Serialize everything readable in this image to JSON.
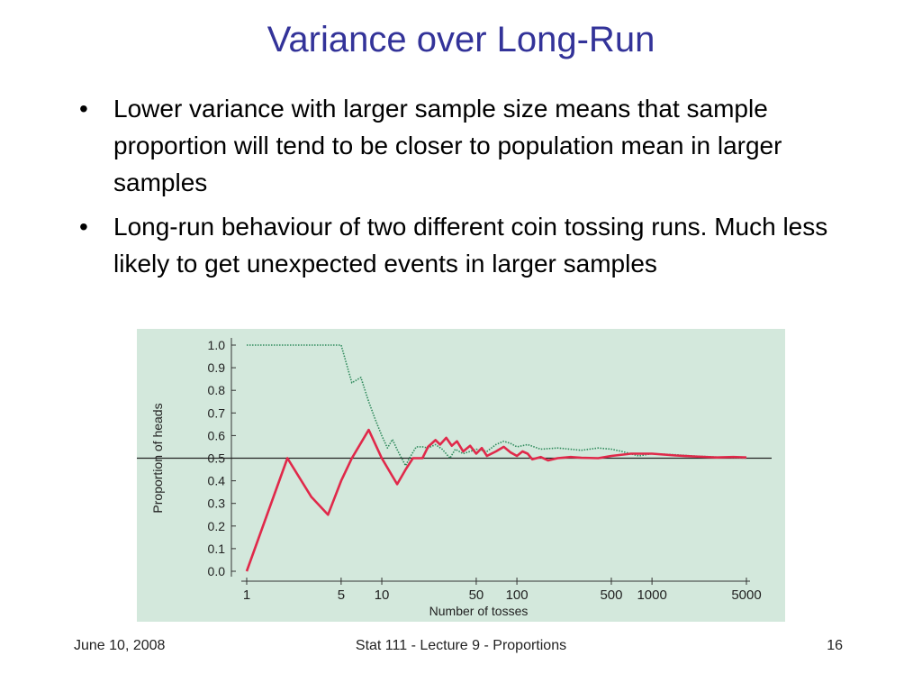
{
  "slide": {
    "title": "Variance over Long-Run",
    "bullets": [
      "Lower variance with larger sample size means that sample proportion will tend to be closer to population mean in larger samples",
      "Long-run behaviour of two different coin tossing runs. Much less likely to get unexpected events in larger samples"
    ],
    "bullet_glyph": "•"
  },
  "footer": {
    "date": "June 10, 2008",
    "course": "Stat 111 - Lecture 9 - Proportions",
    "page": "16"
  },
  "chart_data": {
    "type": "line",
    "title": "",
    "xlabel": "Number of tosses",
    "ylabel": "Proportion of heads",
    "x_scale": "log",
    "xlim": [
      1,
      5000
    ],
    "ylim": [
      0,
      1
    ],
    "x_ticks": [
      1,
      5,
      10,
      50,
      100,
      500,
      1000,
      5000
    ],
    "y_ticks": [
      "0.0",
      "0.1",
      "0.2",
      "0.3",
      "0.4",
      "0.5",
      "0.6",
      "0.7",
      "0.8",
      "0.9",
      "1.0"
    ],
    "reference_line": 0.5,
    "grid": false,
    "legend": "none",
    "colors": {
      "background": "#d3e8dc",
      "red_series": "#e0294a",
      "green_series": "#2f8a5c",
      "reference": "#222222"
    },
    "series": [
      {
        "color": "#e0294a",
        "style": "solid",
        "points": [
          [
            1,
            0.0
          ],
          [
            2,
            0.5
          ],
          [
            3,
            0.33
          ],
          [
            4,
            0.25
          ],
          [
            5,
            0.4
          ],
          [
            6,
            0.5
          ],
          [
            8,
            0.625
          ],
          [
            10,
            0.5
          ],
          [
            12,
            0.42
          ],
          [
            13,
            0.385
          ],
          [
            15,
            0.45
          ],
          [
            17,
            0.5
          ],
          [
            20,
            0.5
          ],
          [
            22,
            0.55
          ],
          [
            25,
            0.58
          ],
          [
            27,
            0.56
          ],
          [
            30,
            0.59
          ],
          [
            33,
            0.555
          ],
          [
            36,
            0.575
          ],
          [
            40,
            0.53
          ],
          [
            45,
            0.555
          ],
          [
            50,
            0.52
          ],
          [
            55,
            0.545
          ],
          [
            60,
            0.51
          ],
          [
            70,
            0.53
          ],
          [
            80,
            0.55
          ],
          [
            90,
            0.525
          ],
          [
            100,
            0.51
          ],
          [
            110,
            0.53
          ],
          [
            120,
            0.52
          ],
          [
            130,
            0.495
          ],
          [
            150,
            0.505
          ],
          [
            170,
            0.49
          ],
          [
            200,
            0.5
          ],
          [
            250,
            0.505
          ],
          [
            300,
            0.502
          ],
          [
            400,
            0.5
          ],
          [
            500,
            0.51
          ],
          [
            700,
            0.52
          ],
          [
            1000,
            0.52
          ],
          [
            1500,
            0.512
          ],
          [
            2000,
            0.508
          ],
          [
            3000,
            0.503
          ],
          [
            4000,
            0.505
          ],
          [
            5000,
            0.503
          ]
        ]
      },
      {
        "color": "#2f8a5c",
        "style": "dotted",
        "points": [
          [
            1,
            1.0
          ],
          [
            2,
            1.0
          ],
          [
            3,
            1.0
          ],
          [
            4,
            1.0
          ],
          [
            5,
            1.0
          ],
          [
            6,
            0.833
          ],
          [
            7,
            0.857
          ],
          [
            8,
            0.75
          ],
          [
            9,
            0.667
          ],
          [
            10,
            0.6
          ],
          [
            11,
            0.545
          ],
          [
            12,
            0.583
          ],
          [
            13,
            0.538
          ],
          [
            14,
            0.5
          ],
          [
            15,
            0.467
          ],
          [
            16,
            0.5
          ],
          [
            18,
            0.55
          ],
          [
            20,
            0.55
          ],
          [
            22,
            0.545
          ],
          [
            25,
            0.56
          ],
          [
            28,
            0.54
          ],
          [
            32,
            0.5
          ],
          [
            35,
            0.54
          ],
          [
            40,
            0.52
          ],
          [
            45,
            0.53
          ],
          [
            50,
            0.54
          ],
          [
            60,
            0.53
          ],
          [
            70,
            0.56
          ],
          [
            80,
            0.575
          ],
          [
            90,
            0.565
          ],
          [
            100,
            0.55
          ],
          [
            120,
            0.56
          ],
          [
            150,
            0.54
          ],
          [
            200,
            0.545
          ],
          [
            300,
            0.535
          ],
          [
            400,
            0.545
          ],
          [
            500,
            0.54
          ],
          [
            600,
            0.53
          ],
          [
            800,
            0.51
          ],
          [
            1000,
            0.52
          ],
          [
            1500,
            0.515
          ],
          [
            2000,
            0.51
          ],
          [
            3000,
            0.505
          ],
          [
            5000,
            0.5
          ]
        ]
      }
    ]
  }
}
